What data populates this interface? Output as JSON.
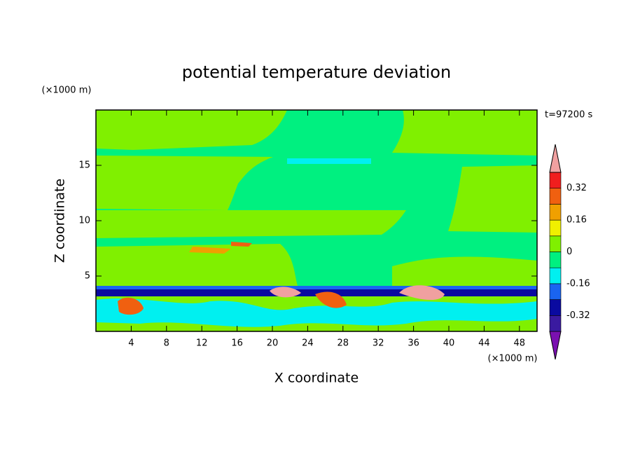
{
  "chart_data": {
    "type": "contour",
    "title": "potential temperature deviation",
    "x_label": "X coordinate",
    "y_label": "Z coordinate",
    "x_unit": "(×1000 m)",
    "y_unit": "(×1000 m)",
    "time_label": "t=97200 s",
    "xlim": [
      0,
      50
    ],
    "ylim": [
      0,
      20
    ],
    "xticks": [
      4,
      8,
      12,
      16,
      20,
      24,
      28,
      32,
      36,
      40,
      44,
      48
    ],
    "yticks": [
      5,
      10,
      15
    ],
    "colorbar": {
      "levels": [
        -0.4,
        -0.32,
        -0.24,
        -0.16,
        -0.08,
        0,
        0.08,
        0.16,
        0.24,
        0.32,
        0.4
      ],
      "colors": [
        "#7a10b0",
        "#3a1aa0",
        "#0a0aa0",
        "#1a64f0",
        "#00f0f0",
        "#00f080",
        "#80f000",
        "#f0f000",
        "#f0a000",
        "#f06010",
        "#f01e1e",
        "#f0a0a0"
      ],
      "ticks": [
        -0.32,
        -0.16,
        0,
        0.16,
        0.32
      ]
    }
  }
}
